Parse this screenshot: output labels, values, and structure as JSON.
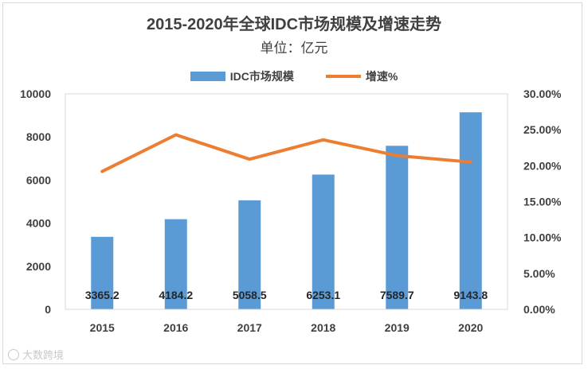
{
  "chart_data": {
    "type": "bar",
    "title": "2015-2020年全球IDC市场规模及增速走势",
    "subtitle": "单位：亿元",
    "categories": [
      "2015",
      "2016",
      "2017",
      "2018",
      "2019",
      "2020"
    ],
    "series": [
      {
        "name": "IDC市场规模",
        "type": "bar",
        "axis": "left",
        "color": "#5b9bd5",
        "values": [
          3365.2,
          4184.2,
          5058.5,
          6253.1,
          7589.7,
          9143.8
        ],
        "labels": [
          "3365.2",
          "4184.2",
          "5058.5",
          "6253.1",
          "7589.7",
          "9143.8"
        ]
      },
      {
        "name": "增速%",
        "type": "line",
        "axis": "right",
        "color": "#ed7d31",
        "values": [
          19.2,
          24.3,
          20.9,
          23.6,
          21.4,
          20.5
        ]
      }
    ],
    "y_left": {
      "min": 0,
      "max": 10000,
      "ticks": [
        "0",
        "2000",
        "4000",
        "6000",
        "8000",
        "10000"
      ]
    },
    "y_right": {
      "min": 0,
      "max": 30,
      "ticks": [
        "0.00%",
        "5.00%",
        "10.00%",
        "15.00%",
        "20.00%",
        "25.00%",
        "30.00%"
      ]
    },
    "grid": false,
    "legend_position": "top"
  },
  "watermark": "大数跨境"
}
